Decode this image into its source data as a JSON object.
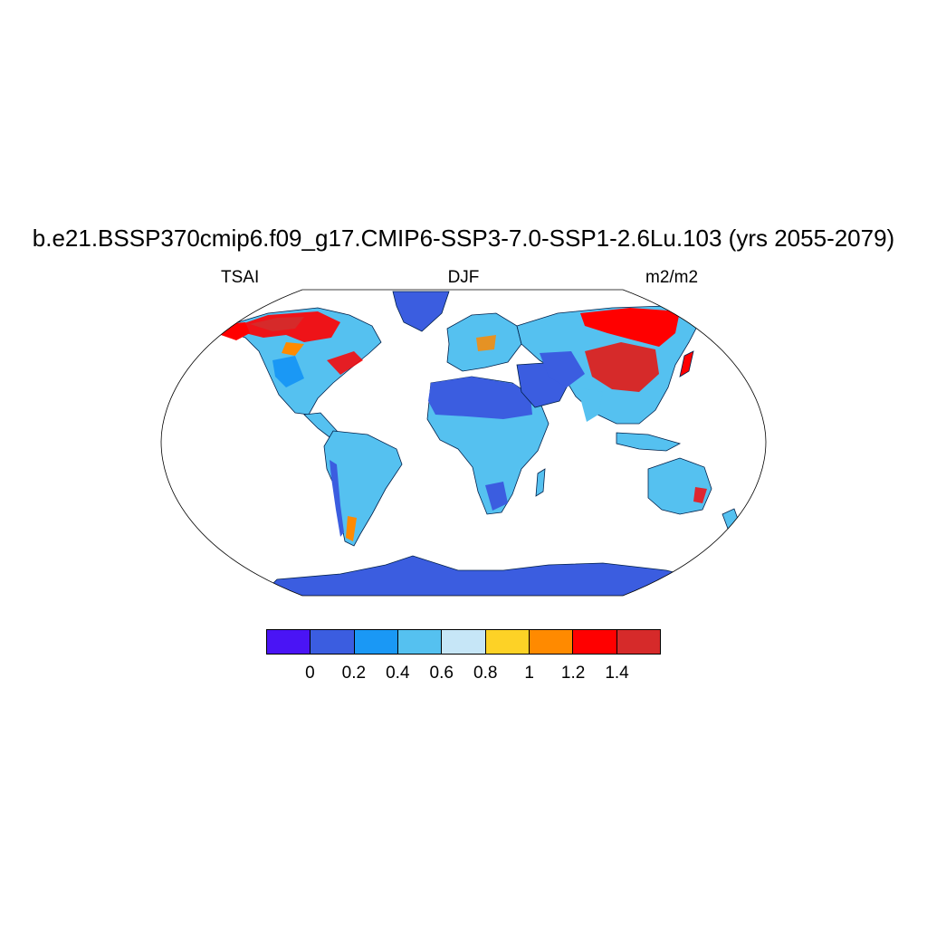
{
  "title": "b.e21.BSSP370cmip6.f09_g17.CMIP6-SSP3-7.0-SSP1-2.6Lu.103 (yrs 2055-2079)",
  "left_label": "TSAI",
  "center_label": "DJF",
  "right_label": "m2/m2",
  "colorbar": {
    "colors": [
      "#4a14f5",
      "#3b5de0",
      "#1a98f5",
      "#55c1f0",
      "#c6e6f7",
      "#fdd226",
      "#ff8a00",
      "#ff0000",
      "#d62a2a"
    ],
    "labels": [
      "0",
      "0.2",
      "0.4",
      "0.6",
      "0.8",
      "1",
      "1.2",
      "1.4"
    ]
  }
}
